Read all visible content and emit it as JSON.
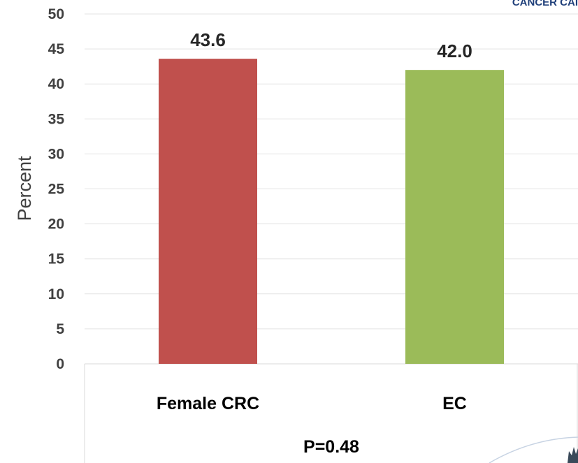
{
  "chart_data": {
    "type": "bar",
    "categories": [
      "Female CRC",
      "EC"
    ],
    "values": [
      43.6,
      42.0
    ],
    "value_labels": [
      "43.6",
      "42.0"
    ],
    "ylabel": "Percent",
    "ylim": [
      0,
      50
    ],
    "yticks": [
      "0",
      "5",
      "10",
      "15",
      "20",
      "25",
      "30",
      "35",
      "40",
      "45",
      "50"
    ],
    "grid": true,
    "annotation": "P=0.48",
    "colors": [
      "#c0504d",
      "#9bbb59"
    ]
  },
  "logo_text": "CANCER CAI"
}
